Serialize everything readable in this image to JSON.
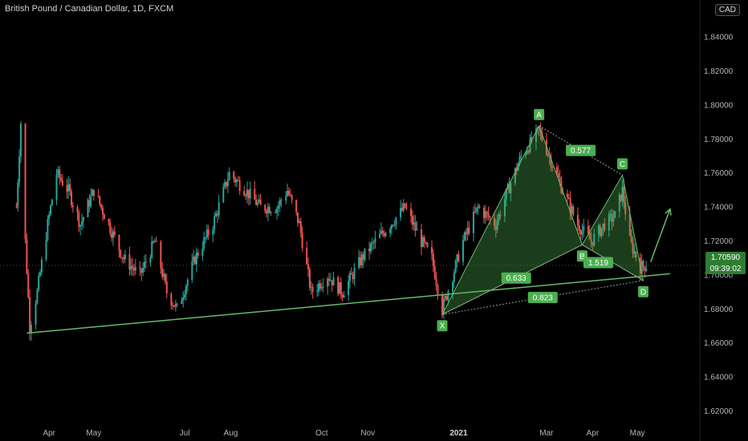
{
  "title": "British Pound / Canadian Dollar, 1D, FXCM",
  "currency_label": "CAD",
  "last_price": "1.70590",
  "countdown": "09:39:02",
  "colors": {
    "background": "#000000",
    "up_candle": "#26a69a",
    "down_candle": "#ef5350",
    "pattern_fill": "#4caf50",
    "pattern_line": "#66bb6a",
    "trendline": "#66bb6a",
    "label_bg": "#4caf50"
  },
  "chart_data": {
    "type": "candlestick",
    "title": "British Pound / Canadian Dollar, 1D, FXCM",
    "y_axis": {
      "ticks": [
        "1.84000",
        "1.82000",
        "1.80000",
        "1.78000",
        "1.76000",
        "1.74000",
        "1.72000",
        "1.70000",
        "1.68000",
        "1.66000",
        "1.64000",
        "1.62000"
      ],
      "range": [
        1.612,
        1.862
      ]
    },
    "x_axis": {
      "ticks": [
        "Apr",
        "May",
        "Jul",
        "Aug",
        "Oct",
        "Nov",
        "2021",
        "Mar",
        "Apr",
        "May"
      ]
    },
    "price_path": [
      [
        "2020-03-10",
        1.74
      ],
      [
        "2020-03-13",
        1.79
      ],
      [
        "2020-03-16",
        1.72
      ],
      [
        "2020-03-19",
        1.67
      ],
      [
        "2020-03-24",
        1.69
      ],
      [
        "2020-03-31",
        1.73
      ],
      [
        "2020-04-06",
        1.76
      ],
      [
        "2020-04-14",
        1.75
      ],
      [
        "2020-04-22",
        1.73
      ],
      [
        "2020-05-01",
        1.75
      ],
      [
        "2020-05-11",
        1.73
      ],
      [
        "2020-05-21",
        1.71
      ],
      [
        "2020-06-01",
        1.7
      ],
      [
        "2020-06-11",
        1.72
      ],
      [
        "2020-06-19",
        1.69
      ],
      [
        "2020-06-26",
        1.68
      ],
      [
        "2020-07-08",
        1.71
      ],
      [
        "2020-07-20",
        1.73
      ],
      [
        "2020-07-31",
        1.76
      ],
      [
        "2020-08-11",
        1.75
      ],
      [
        "2020-08-21",
        1.74
      ],
      [
        "2020-09-01",
        1.74
      ],
      [
        "2020-09-08",
        1.75
      ],
      [
        "2020-09-16",
        1.73
      ],
      [
        "2020-09-24",
        1.69
      ],
      [
        "2020-10-05",
        1.7
      ],
      [
        "2020-10-15",
        1.69
      ],
      [
        "2020-10-28",
        1.71
      ],
      [
        "2020-11-06",
        1.72
      ],
      [
        "2020-11-16",
        1.73
      ],
      [
        "2020-11-26",
        1.74
      ],
      [
        "2020-12-07",
        1.72
      ],
      [
        "2020-12-14",
        1.71
      ],
      [
        "2020-12-21",
        1.68
      ],
      [
        "2021-01-04",
        1.72
      ],
      [
        "2021-01-14",
        1.74
      ],
      [
        "2021-01-26",
        1.73
      ],
      [
        "2021-02-03",
        1.75
      ],
      [
        "2021-02-12",
        1.77
      ],
      [
        "2021-02-24",
        1.785
      ],
      [
        "2021-03-03",
        1.77
      ],
      [
        "2021-03-12",
        1.75
      ],
      [
        "2021-03-22",
        1.73
      ],
      [
        "2021-03-31",
        1.72
      ],
      [
        "2021-04-09",
        1.73
      ],
      [
        "2021-04-16",
        1.735
      ],
      [
        "2021-04-21",
        1.75
      ],
      [
        "2021-04-26",
        1.72
      ],
      [
        "2021-05-03",
        1.705
      ],
      [
        "2021-05-07",
        1.706
      ]
    ],
    "harmonic_pattern": {
      "points": [
        {
          "label": "X",
          "date": "2020-12-21",
          "price": 1.677
        },
        {
          "label": "A",
          "date": "2021-02-24",
          "price": 1.788
        },
        {
          "label": "B",
          "date": "2021-03-25",
          "price": 1.718
        },
        {
          "label": "C",
          "date": "2021-04-21",
          "price": 1.759
        },
        {
          "label": "D",
          "date": "2021-05-05",
          "price": 1.697
        }
      ],
      "ratios": [
        {
          "label": "0.577",
          "between": [
            "A",
            "C"
          ]
        },
        {
          "label": "0.633",
          "between": [
            "X",
            "B"
          ]
        },
        {
          "label": "1.519",
          "between": [
            "B",
            "D"
          ]
        },
        {
          "label": "0.823",
          "between": [
            "X",
            "D"
          ]
        }
      ]
    },
    "trendline": {
      "from": {
        "date": "2020-03-17",
        "price": 1.666
      },
      "to": {
        "date": "2021-05-23",
        "price": 1.701
      }
    },
    "projection_arrow": {
      "from": {
        "date": "2021-05-10",
        "price": 1.708
      },
      "to": {
        "date": "2021-05-23",
        "price": 1.739
      }
    },
    "last_price_line": 1.7059
  }
}
